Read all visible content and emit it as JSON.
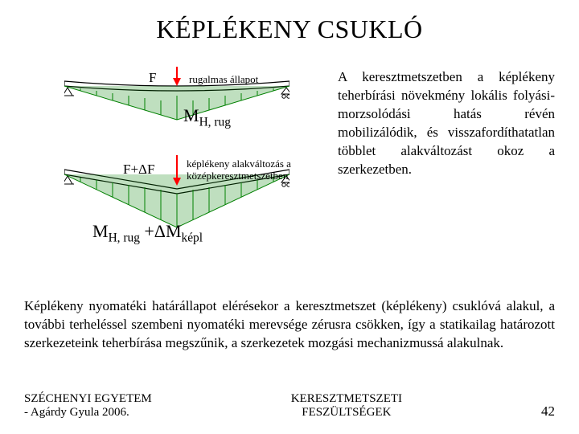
{
  "title": "KÉPLÉKENY CSUKLÓ",
  "diagram": {
    "beam1": {
      "force_label": "F",
      "state_label": "rugalmas állapot",
      "moment_label_html": "M<sub>H, rug</sub>"
    },
    "beam2": {
      "force_label": "F+ΔF",
      "state_label": "képlékeny alakváltozás a középkeresztmetszetben",
      "moment_label_html": "M<sub>H, rug</sub> +ΔM<sub>képl</sub>"
    },
    "colors": {
      "beam_outline": "#000000",
      "moment_fill": "#008000",
      "arrow": "#ff0000",
      "text": "#000000"
    }
  },
  "side_text": "A keresztmetszetben a képlékeny teherbírási növekmény lokális folyási-morzsolódási hatás révén mobilizálódik, és visszafordíthatatlan többlet alakváltozást okoz a szerkezetben.",
  "body_text": "Képlékeny nyomatéki határállapot elérésekor a keresztmetszet (képlékeny) csuklóvá alakul,  a további terheléssel szembeni nyomatéki merevsége zérusra csökken, így a statikailag határozott szerkezeteink teherbírása megszűnik, a szerkezetek mozgási mechanizmussá alakulnak.",
  "footer": {
    "left": "SZÉCHENYI EGYETEM\n -  Agárdy Gyula 2006.",
    "center": "KERESZTMETSZETI\nFESZÜLTSÉGEK",
    "page": "42"
  }
}
